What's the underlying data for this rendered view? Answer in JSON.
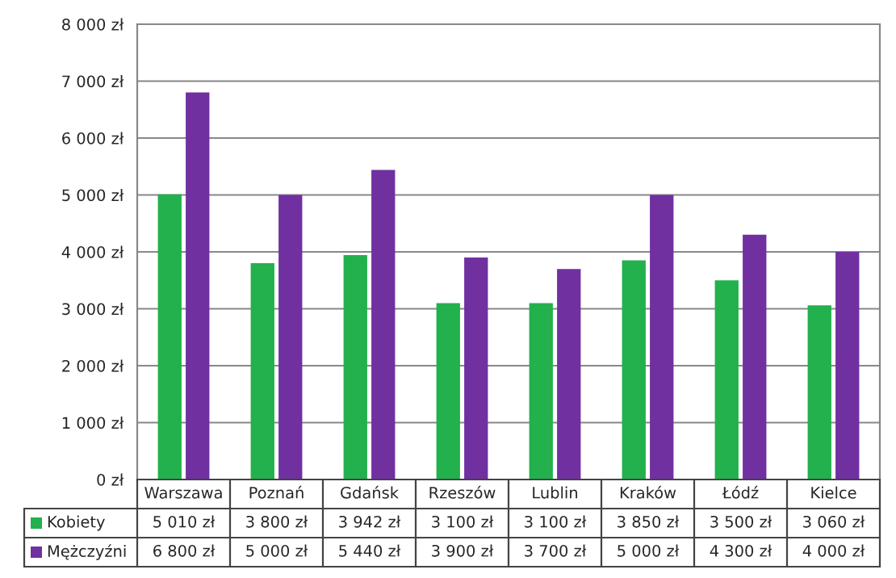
{
  "chart_data": {
    "type": "bar",
    "categories": [
      "Warszawa",
      "Poznań",
      "Gdańsk",
      "Rzeszów",
      "Lublin",
      "Kraków",
      "Łódź",
      "Kielce"
    ],
    "series": [
      {
        "name": "Kobiety",
        "color": "#22b14c",
        "values": [
          5010,
          3800,
          3942,
          3100,
          3100,
          3850,
          3500,
          3060
        ],
        "value_labels": [
          "5 010 zł",
          "3 800 zł",
          "3 942 zł",
          "3 100 zł",
          "3 100 zł",
          "3 850 zł",
          "3 500 zł",
          "3 060 zł"
        ]
      },
      {
        "name": "Mężczyźni",
        "color": "#7030a0",
        "values": [
          6800,
          5000,
          5440,
          3900,
          3700,
          5000,
          4300,
          4000
        ],
        "value_labels": [
          "6 800 zł",
          "5 000 zł",
          "5 440 zł",
          "3 900 zł",
          "3 700 zł",
          "5 000 zł",
          "4 300 zł",
          "4 000 zł"
        ]
      }
    ],
    "ylim": [
      0,
      8000
    ],
    "yticks": [
      {
        "value": 0,
        "label": "0 zł"
      },
      {
        "value": 1000,
        "label": "1 000 zł"
      },
      {
        "value": 2000,
        "label": "2 000 zł"
      },
      {
        "value": 3000,
        "label": "3 000 zł"
      },
      {
        "value": 4000,
        "label": "4 000 zł"
      },
      {
        "value": 5000,
        "label": "5 000 zł"
      },
      {
        "value": 6000,
        "label": "6 000 zł"
      },
      {
        "value": 7000,
        "label": "7 000 zł"
      },
      {
        "value": 8000,
        "label": "8 000 zł"
      }
    ],
    "grid": "y",
    "legend": "bottom"
  }
}
